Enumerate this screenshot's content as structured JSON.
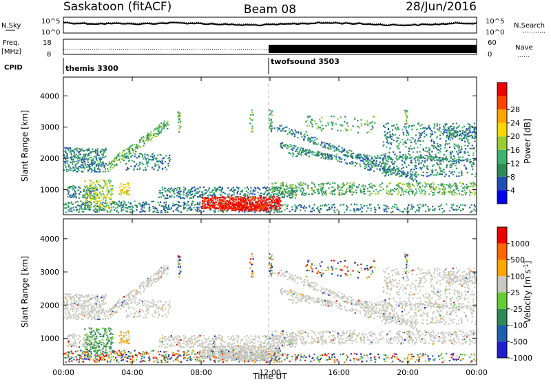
{
  "header": {
    "station": "Saskatoon (fitACF)",
    "beam": "Beam 08",
    "date": "28/Jun/2016"
  },
  "noise_panel": {
    "left_label": "N.Sky",
    "right_label": "N.Search",
    "left_ticks": [
      "10^5",
      "10^0"
    ],
    "right_ticks": [
      "10^5",
      "10^0"
    ]
  },
  "freq_panel": {
    "left_label_top": "Freq.",
    "left_label_bottom": "[MHz]",
    "left_ticks": [
      "18",
      "8"
    ],
    "right_label": "Nave",
    "right_ticks": [
      "60",
      "0"
    ],
    "cpid_label": "CPID"
  },
  "cpid": {
    "segments": [
      {
        "label": "themis 3300",
        "start_hour": 0
      },
      {
        "label": "twofsound 3503",
        "start_hour": 12
      }
    ]
  },
  "colors": {
    "power": [
      "#0000ee",
      "#1f4fb3",
      "#2e8b57",
      "#3cb371",
      "#9acd32",
      "#ffd700",
      "#ffa500",
      "#ff4500",
      "#ee0000"
    ],
    "velocity": [
      "#2020cc",
      "#1f5fb0",
      "#2e8b57",
      "#66cc33",
      "#c8c8c0",
      "#ffa500",
      "#ff6600",
      "#ee0000"
    ]
  },
  "chart_data": [
    {
      "type": "heatmap",
      "panel": "power",
      "xlabel": "",
      "ylabel": "Slant Range [km]",
      "xlim": [
        0,
        24
      ],
      "ylim": [
        200,
        4600
      ],
      "x_ticks": [
        "00:00",
        "04:00",
        "08:00",
        "12:00",
        "16:00",
        "20:00",
        "00:00"
      ],
      "y_ticks": [
        1000,
        2000,
        3000,
        4000
      ],
      "colorbar": {
        "label": "Power [dB]",
        "ticks": [
          "4",
          "8",
          "12",
          "16",
          "20",
          "24",
          "28"
        ]
      }
    },
    {
      "type": "heatmap",
      "panel": "velocity",
      "xlabel": "Time UT",
      "ylabel": "Slant Range [km]",
      "xlim": [
        0,
        24
      ],
      "ylim": [
        200,
        4600
      ],
      "x_ticks": [
        "00:00",
        "04:00",
        "08:00",
        "12:00",
        "16:00",
        "20:00",
        "00:00"
      ],
      "y_ticks": [
        1000,
        2000,
        3000,
        4000
      ],
      "colorbar": {
        "label": "Velocity [m s^-1]",
        "ticks": [
          "1000",
          "500",
          "100",
          "25",
          "-25",
          "-100",
          "-500",
          "-1000"
        ]
      }
    }
  ]
}
